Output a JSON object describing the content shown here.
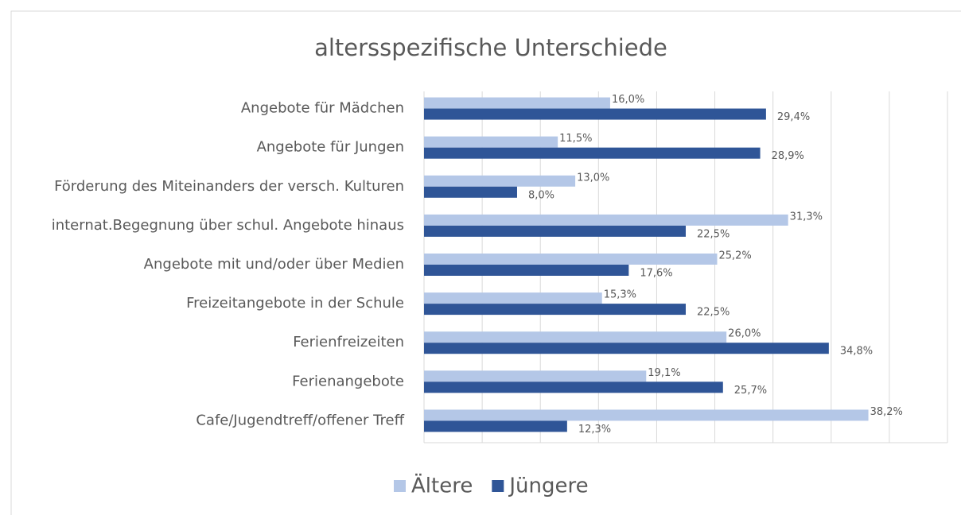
{
  "chart_data": {
    "type": "bar",
    "orientation": "horizontal",
    "title": "altersspezifische Unterschiede",
    "categories": [
      "Angebote für Mädchen",
      "Angebote für Jungen",
      "Förderung des Miteinanders der versch. Kulturen",
      "internat.Begegnung über schul. Angebote hinaus",
      "Angebote mit und/oder über Medien",
      "Freizeitangebote in der Schule",
      "Ferienfreizeiten",
      "Ferienangebote",
      "Cafe/Jugendtreff/offener Treff"
    ],
    "series": [
      {
        "name": "Ältere",
        "color": "#b4c7e7",
        "values": [
          16.0,
          11.5,
          13.0,
          31.3,
          25.2,
          15.3,
          26.0,
          19.1,
          38.2
        ],
        "value_labels": [
          "16,0%",
          "11,5%",
          "13,0%",
          "31,3%",
          "25,2%",
          "15,3%",
          "26,0%",
          "19,1%",
          "38,2%"
        ]
      },
      {
        "name": "Jüngere",
        "color": "#2f5597",
        "values": [
          29.4,
          28.9,
          8.0,
          22.5,
          17.6,
          22.5,
          34.8,
          25.7,
          12.3
        ],
        "value_labels": [
          "29,4%",
          "28,9%",
          "8,0%",
          "22,5%",
          "17,6%",
          "22,5%",
          "34,8%",
          "25,7%",
          "12,3%"
        ]
      }
    ],
    "xlim": [
      0,
      45
    ],
    "xticks": [
      0,
      5,
      10,
      15,
      20,
      25,
      30,
      35,
      40,
      45
    ],
    "grid": true,
    "legend": "bottom"
  }
}
